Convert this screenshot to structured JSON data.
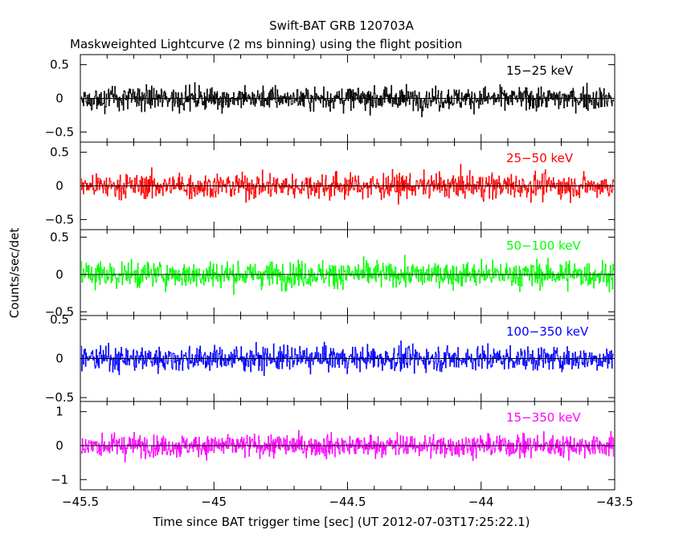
{
  "title": "Swift-BAT GRB 120703A",
  "subtitle": "Maskweighted Lightcurve (2 ms binning) using the flight position",
  "ylabel": "Counts/sec/det",
  "xlabel": "Time since BAT trigger time [sec] (UT 2012-07-03T17:25:22.1)",
  "colors": {
    "axes": "#000000",
    "background": "#ffffff"
  },
  "chart_data": {
    "type": "line",
    "style": "histogram-step",
    "x_range": [
      -45.5,
      -43.5
    ],
    "x_ticks": [
      -45.5,
      -45,
      -44.5,
      -44,
      -43.5
    ],
    "x_tick_labels": [
      "−45.5",
      "−45",
      "−44.5",
      "−44",
      "−43.5"
    ],
    "bin_width_s": 0.002,
    "n_bins": 1000,
    "panels": [
      {
        "band": "15−25 keV",
        "color": "#000000",
        "ylim": [
          -0.65,
          0.65
        ],
        "y_ticks": [
          0.5,
          0,
          -0.5
        ],
        "y_tick_labels": [
          "0.5",
          "0",
          "−0.5"
        ],
        "noise_sigma": 0.22,
        "baseline": 0
      },
      {
        "band": "25−50 keV",
        "color": "#ff0000",
        "ylim": [
          -0.65,
          0.65
        ],
        "y_ticks": [
          0.5,
          0,
          -0.5
        ],
        "y_tick_labels": [
          "0.5",
          "0",
          "−0.5"
        ],
        "noise_sigma": 0.24,
        "baseline": 0
      },
      {
        "band": "50−100 keV",
        "color": "#00ff00",
        "ylim": [
          -0.55,
          0.6
        ],
        "y_ticks": [
          0.5,
          0,
          -0.5
        ],
        "y_tick_labels": [
          "0.5",
          "0",
          "−0.5"
        ],
        "noise_sigma": 0.22,
        "baseline": 0
      },
      {
        "band": "100−350 keV",
        "color": "#0000ff",
        "ylim": [
          -0.55,
          0.55
        ],
        "y_ticks": [
          0.5,
          0,
          -0.5
        ],
        "y_tick_labels": [
          "0.5",
          "0",
          "−0.5"
        ],
        "noise_sigma": 0.2,
        "baseline": 0
      },
      {
        "band": "15−350 keV",
        "color": "#ff00ff",
        "ylim": [
          -1.3,
          1.3
        ],
        "y_ticks": [
          1,
          0,
          -1
        ],
        "y_tick_labels": [
          "1",
          "0",
          "−1"
        ],
        "noise_sigma": 0.42,
        "baseline": 0
      }
    ]
  }
}
